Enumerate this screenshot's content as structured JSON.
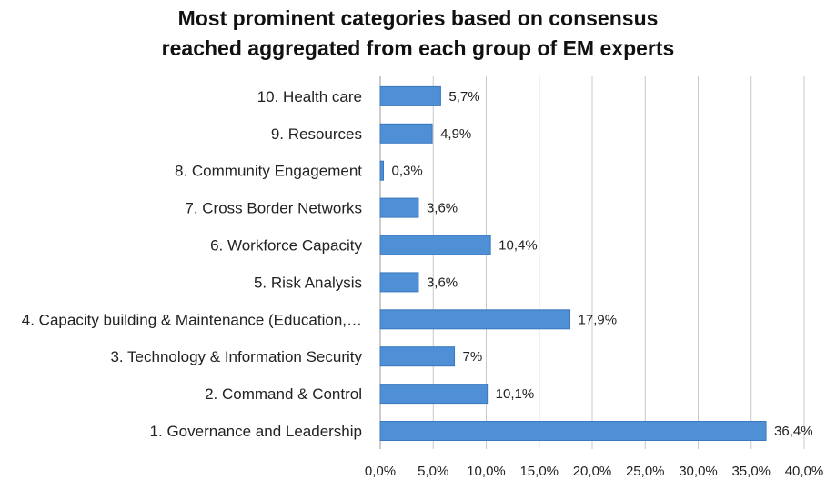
{
  "chart_data": {
    "type": "bar",
    "orientation": "horizontal",
    "title_lines": [
      "Most prominent categories based on consensus",
      "reached aggregated from each group of EM experts"
    ],
    "xlabel": "",
    "ylabel": "",
    "categories": [
      "1. Governance and Leadership",
      "2. Command & Control",
      "3. Technology & Information Security",
      "4. Capacity building & Maintenance (Education,…",
      "5. Risk Analysis",
      "6. Workforce Capacity",
      "7. Cross Border Networks",
      "8. Community Engagement",
      "9. Resources",
      "10. Health care"
    ],
    "values": [
      36.4,
      10.1,
      7.0,
      17.9,
      3.6,
      10.4,
      3.6,
      0.3,
      4.9,
      5.7
    ],
    "data_labels": [
      "36,4%",
      "10,1%",
      "7%",
      "17,9%",
      "3,6%",
      "10,4%",
      "3,6%",
      "0,3%",
      "4,9%",
      "5,7%"
    ],
    "xlim": [
      0,
      40
    ],
    "x_ticks": [
      0,
      5,
      10,
      15,
      20,
      25,
      30,
      35,
      40
    ],
    "x_tick_labels": [
      "0,0%",
      "5,0%",
      "10,0%",
      "15,0%",
      "20,0%",
      "25,0%",
      "30,0%",
      "35,0%",
      "40,0%"
    ],
    "grid": "vertical",
    "legend": "none",
    "colors": {
      "bar": "#4f8fd6",
      "bar_edge": "#3b78bd",
      "grid": "#c8c8c8",
      "axis": "#9a9a9a",
      "text": "#222222"
    }
  }
}
